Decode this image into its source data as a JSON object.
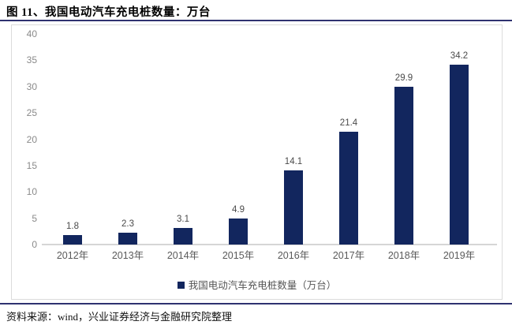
{
  "title": "图 11、我国电动汽车充电桩数量：万台",
  "source": "资料来源：wind，兴业证券经济与金融研究院整理",
  "legend": {
    "label": "我国电动汽车充电桩数量（万台）"
  },
  "colors": {
    "bar": "#12265E",
    "rule": "#2F3270",
    "axis_line": "#D6D6D6",
    "tick_text": "#8A8A8A",
    "category_text": "#5A5A5A",
    "value_text": "#4A4A4A",
    "box_border": "#DCDCDC"
  },
  "chart_data": {
    "type": "bar",
    "title": "我国电动汽车充电桩数量（万台）",
    "categories": [
      "2012年",
      "2013年",
      "2014年",
      "2015年",
      "2016年",
      "2017年",
      "2018年",
      "2019年"
    ],
    "values": [
      1.8,
      2.3,
      3.1,
      4.9,
      14.1,
      21.4,
      29.9,
      34.2
    ],
    "value_labels": [
      "1.8",
      "2.3",
      "3.1",
      "4.9",
      "14.1",
      "21.4",
      "29.9",
      "34.2"
    ],
    "xlabel": "",
    "ylabel": "",
    "ylim": [
      0,
      40
    ],
    "yticks": [
      0,
      5,
      10,
      15,
      20,
      25,
      30,
      35,
      40
    ],
    "grid": false,
    "legend_position": "bottom"
  }
}
